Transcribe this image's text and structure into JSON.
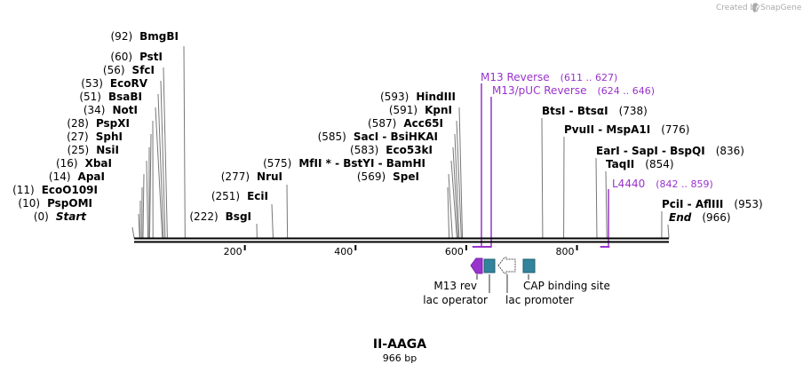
{
  "brand": {
    "created_by": "Created by",
    "name": "SnapGene"
  },
  "sequence": {
    "name": "II-AAGA",
    "length": 966,
    "length_label": "966 bp",
    "ticks": [
      200,
      400,
      600,
      800
    ]
  },
  "sites": [
    {
      "pos": "(0)",
      "name": "Start",
      "bp": 0,
      "italic": true
    },
    {
      "pos": "(10)",
      "name": "PspOMI",
      "bp": 10
    },
    {
      "pos": "(11)",
      "name": "EcoO109I",
      "bp": 11
    },
    {
      "pos": "(14)",
      "name": "ApaI",
      "bp": 14
    },
    {
      "pos": "(16)",
      "name": "XbaI",
      "bp": 16
    },
    {
      "pos": "(25)",
      "name": "NsiI",
      "bp": 25
    },
    {
      "pos": "(27)",
      "name": "SphI",
      "bp": 27
    },
    {
      "pos": "(28)",
      "name": "PspXI",
      "bp": 28
    },
    {
      "pos": "(34)",
      "name": "NotI",
      "bp": 34
    },
    {
      "pos": "(51)",
      "name": "BsaBI",
      "bp": 51
    },
    {
      "pos": "(53)",
      "name": "EcoRV",
      "bp": 53
    },
    {
      "pos": "(56)",
      "name": "SfcI",
      "bp": 56
    },
    {
      "pos": "(60)",
      "name": "PstI",
      "bp": 60
    },
    {
      "pos": "(92)",
      "name": "BmgBI",
      "bp": 92
    },
    {
      "pos": "(222)",
      "name": "BsgI",
      "bp": 222
    },
    {
      "pos": "(251)",
      "name": "EciI",
      "bp": 251
    },
    {
      "pos": "(277)",
      "name": "NruI",
      "bp": 277
    },
    {
      "pos": "(575)",
      "name": "MfII * - BstYI - BamHI",
      "bp": 575
    },
    {
      "pos": "(569)",
      "name": "SpeI",
      "bp": 569
    },
    {
      "pos": "(583)",
      "name": "Eco53kI",
      "bp": 583
    },
    {
      "pos": "(585)",
      "name": "SacI - BsiHKAI",
      "bp": 585
    },
    {
      "pos": "(587)",
      "name": "Acc65I",
      "bp": 587
    },
    {
      "pos": "(591)",
      "name": "KpnI",
      "bp": 591
    },
    {
      "pos": "(593)",
      "name": "HindIII",
      "bp": 593
    },
    {
      "pos": "(738)",
      "name": "BtsI - BtsαI",
      "bp": 738,
      "pos_after": true
    },
    {
      "pos": "(776)",
      "name": "PvuII - MspA1I",
      "bp": 776,
      "pos_after": true
    },
    {
      "pos": "(836)",
      "name": "EarI - SapI - BspQI",
      "bp": 836,
      "pos_after": true
    },
    {
      "pos": "(854)",
      "name": "TaqII",
      "bp": 854,
      "pos_after": true
    },
    {
      "pos": "(953)",
      "name": "PciI - AflIII",
      "bp": 953,
      "pos_after": true
    },
    {
      "pos": "(966)",
      "name": "End",
      "bp": 966,
      "italic": true,
      "pos_after": true
    }
  ],
  "primers": [
    {
      "name": "M13 Reverse",
      "range": "(611 .. 627)",
      "start": 611,
      "end": 627
    },
    {
      "name": "M13/pUC Reverse",
      "range": "(624 .. 646)",
      "start": 624,
      "end": 646
    },
    {
      "name": "L4440",
      "range": "(842 .. 859)",
      "start": 842,
      "end": 859
    }
  ],
  "features": [
    {
      "name": "M13 rev",
      "kind": "arrow-left",
      "color": "#9933cc"
    },
    {
      "name": "lac operator",
      "kind": "box",
      "color": "#31849b"
    },
    {
      "name": "lac promoter",
      "kind": "arrow-left-open",
      "color": "#ffffff"
    },
    {
      "name": "CAP binding site",
      "kind": "box",
      "color": "#31849b"
    }
  ],
  "colors": {
    "primer": "#9933cc",
    "feature": "#31849b",
    "axis": "#000000"
  }
}
